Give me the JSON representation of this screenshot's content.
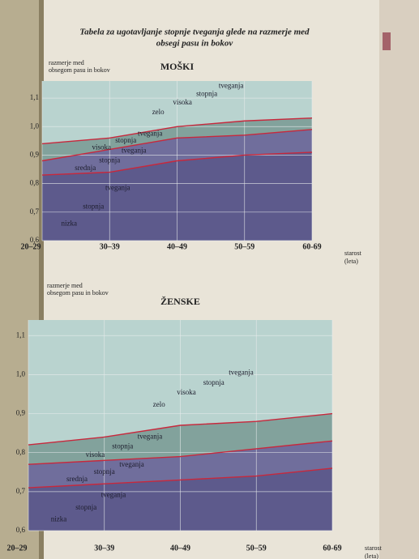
{
  "page_title": [
    "Tabela za ugotavljanje stopnje tveganja glede na razmerje med",
    "obsegi pasu in bokov"
  ],
  "chart_data": [
    {
      "type": "area",
      "title": "MOŠKI",
      "ylabel": [
        "razmerje med",
        "obsegom pasu in bokov"
      ],
      "xlabel": [
        "starost",
        "(leta)"
      ],
      "categories": [
        "20–29",
        "30–39",
        "40–49",
        "50–59",
        "60-69"
      ],
      "ylim": [
        0.6,
        1.16
      ],
      "yticks": [
        {
          "value": 0.6,
          "label": "0,6"
        },
        {
          "value": 0.7,
          "label": "0,7"
        },
        {
          "value": 0.8,
          "label": "0,8"
        },
        {
          "value": 0.9,
          "label": "0,9"
        },
        {
          "value": 1.0,
          "label": "1,0"
        },
        {
          "value": 1.1,
          "label": "1,1"
        }
      ],
      "grid": true,
      "series": [
        {
          "color": "#c8283c",
          "values": [
            0.83,
            0.84,
            0.88,
            0.9,
            0.91
          ]
        },
        {
          "color": "#c8283c",
          "values": [
            0.88,
            0.92,
            0.96,
            0.97,
            0.99
          ]
        },
        {
          "color": "#c8283c",
          "values": [
            0.94,
            0.96,
            1.0,
            1.02,
            1.03
          ]
        }
      ],
      "bands": [
        {
          "color": "#5d5a8c",
          "words": [
            "nizka",
            "stopnja",
            "tveganja"
          ]
        },
        {
          "color": "#706e9c",
          "words": [
            "srednja",
            "stopnja",
            "tveganja"
          ]
        },
        {
          "color": "#82a29c",
          "words": [
            "visoka",
            "stopnja",
            "tveganja"
          ]
        },
        {
          "color": "#b9d3cf",
          "words": [
            "zelo",
            "visoka",
            "stopnja",
            "tveganja"
          ]
        }
      ]
    },
    {
      "type": "area",
      "title": "ŽENSKE",
      "ylabel": [
        "razmerje med",
        "obsegom pasu in bokov"
      ],
      "xlabel": [
        "starost",
        "(leta)"
      ],
      "categories": [
        "20–29",
        "30–39",
        "40–49",
        "50–59",
        "60-69"
      ],
      "ylim": [
        0.6,
        1.14
      ],
      "yticks": [
        {
          "value": 0.6,
          "label": "0,6"
        },
        {
          "value": 0.7,
          "label": "0,7"
        },
        {
          "value": 0.8,
          "label": "0,8"
        },
        {
          "value": 0.9,
          "label": "0,9"
        },
        {
          "value": 1.0,
          "label": "1,0"
        },
        {
          "value": 1.1,
          "label": "1,1"
        }
      ],
      "grid": true,
      "series": [
        {
          "color": "#c8283c",
          "values": [
            0.71,
            0.72,
            0.73,
            0.74,
            0.76
          ]
        },
        {
          "color": "#c8283c",
          "values": [
            0.77,
            0.78,
            0.79,
            0.81,
            0.83
          ]
        },
        {
          "color": "#c8283c",
          "values": [
            0.82,
            0.84,
            0.87,
            0.88,
            0.9
          ]
        }
      ],
      "bands": [
        {
          "color": "#5d5a8c",
          "words": [
            "nizka",
            "stopnja",
            "tveganja"
          ]
        },
        {
          "color": "#706e9c",
          "words": [
            "srednja",
            "stopnja",
            "tveganja"
          ]
        },
        {
          "color": "#82a29c",
          "words": [
            "visoka",
            "stopnja",
            "tveganja"
          ]
        },
        {
          "color": "#b9d3cf",
          "words": [
            "zelo",
            "visoka",
            "stopnja",
            "tveganja"
          ]
        }
      ]
    }
  ]
}
